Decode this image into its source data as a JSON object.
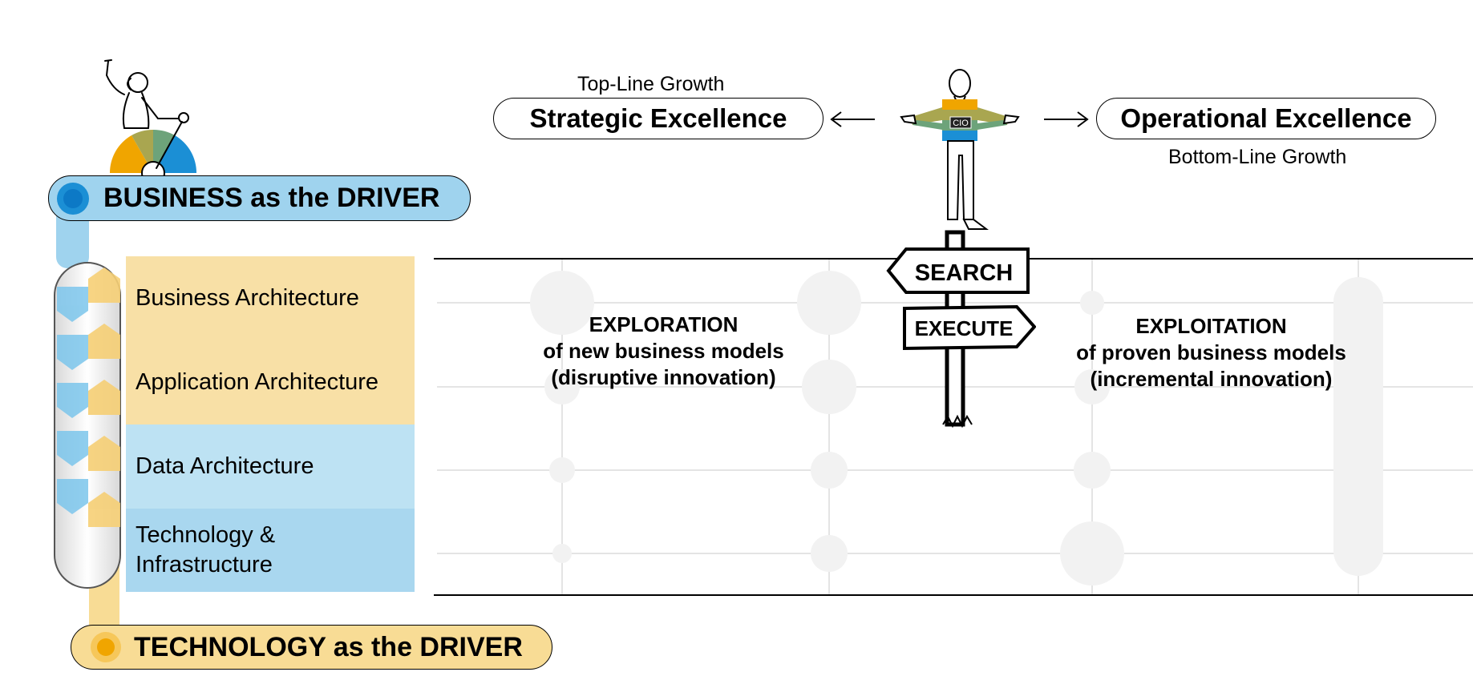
{
  "business_driver": {
    "label": "BUSINESS as the DRIVER",
    "color": "#9fd3ee"
  },
  "technology_driver": {
    "label": "TECHNOLOGY as the DRIVER",
    "color": "#f8dc95"
  },
  "layers": [
    {
      "label": "Business Architecture",
      "color": "#f8e0a6"
    },
    {
      "label": "Application Architecture",
      "color": "#f8e0a6"
    },
    {
      "label": "Data Architecture",
      "color": "#bde2f3"
    },
    {
      "label": "Technology &\nInfrastructure",
      "color": "#a9d7ef"
    }
  ],
  "strategic": {
    "caption": "Top-Line Growth",
    "label": "Strategic Excellence"
  },
  "operational": {
    "caption": "Bottom-Line Growth",
    "label": "Operational Excellence"
  },
  "cio": {
    "badge": "CIO"
  },
  "signs": {
    "search": "SEARCH",
    "execute": "EXECUTE"
  },
  "exploration": {
    "title": "EXPLORATION",
    "line1": "of new business models",
    "line2": "(disruptive innovation)"
  },
  "exploitation": {
    "title": "EXPLOITATION",
    "line1": "of proven business models",
    "line2": "(incremental innovation)"
  },
  "colors": {
    "orange": "#f0a500",
    "olive": "#a9a650",
    "green": "#6da37a",
    "blue": "#1b8fd5",
    "grid": "#e6e6e6"
  }
}
